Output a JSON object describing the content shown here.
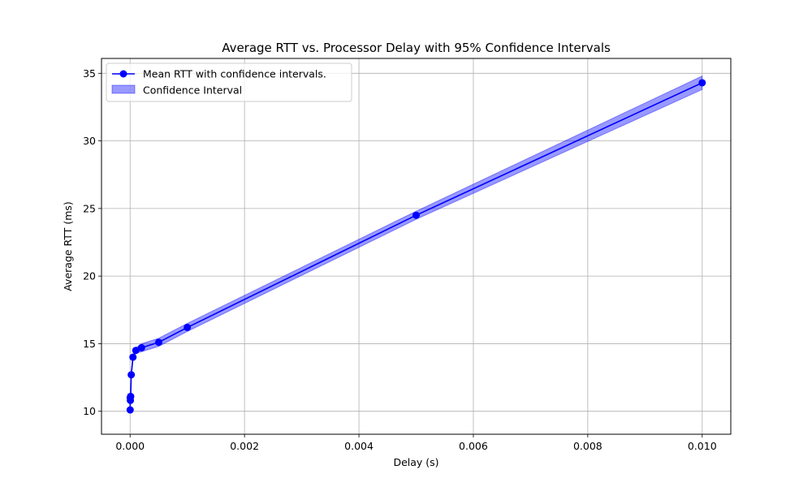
{
  "chart_data": {
    "type": "line",
    "title": "Average RTT vs. Processor Delay with 95% Confidence Intervals",
    "xlabel": "Delay (s)",
    "ylabel": "Average RTT (ms)",
    "xlim": [
      -0.0005,
      0.0105
    ],
    "ylim": [
      8.3,
      36.1
    ],
    "xticks": [
      0.0,
      0.002,
      0.004,
      0.006,
      0.008,
      0.01
    ],
    "xtick_labels": [
      "0.000",
      "0.002",
      "0.004",
      "0.006",
      "0.008",
      "0.010"
    ],
    "yticks": [
      10,
      15,
      20,
      25,
      30,
      35
    ],
    "ytick_labels": [
      "10",
      "15",
      "20",
      "25",
      "30",
      "35"
    ],
    "grid": true,
    "legend_position": "top-left",
    "series": [
      {
        "name": "Mean RTT with confidence intervals.",
        "color": "#0000ff",
        "marker": "circle",
        "x": [
          1e-06,
          2e-06,
          5e-06,
          1e-05,
          2e-05,
          5e-05,
          0.0001,
          0.0002,
          0.0005,
          0.001,
          0.005,
          0.01
        ],
        "y": [
          10.1,
          11.0,
          10.8,
          11.1,
          12.7,
          14.0,
          14.5,
          14.7,
          15.1,
          16.2,
          24.5,
          34.3
        ],
        "ci_lower": [
          9.9,
          10.8,
          10.6,
          10.9,
          12.5,
          13.8,
          14.3,
          14.4,
          14.8,
          15.9,
          24.2,
          33.8
        ],
        "ci_upper": [
          10.3,
          11.2,
          11.0,
          11.3,
          12.9,
          14.2,
          14.7,
          15.0,
          15.4,
          16.5,
          24.8,
          34.8
        ]
      }
    ],
    "legend": [
      {
        "label": "Mean RTT with confidence intervals.",
        "kind": "line-marker",
        "color": "#0000ff"
      },
      {
        "label": "Confidence Interval",
        "kind": "patch",
        "color": "#0000ff"
      }
    ]
  }
}
